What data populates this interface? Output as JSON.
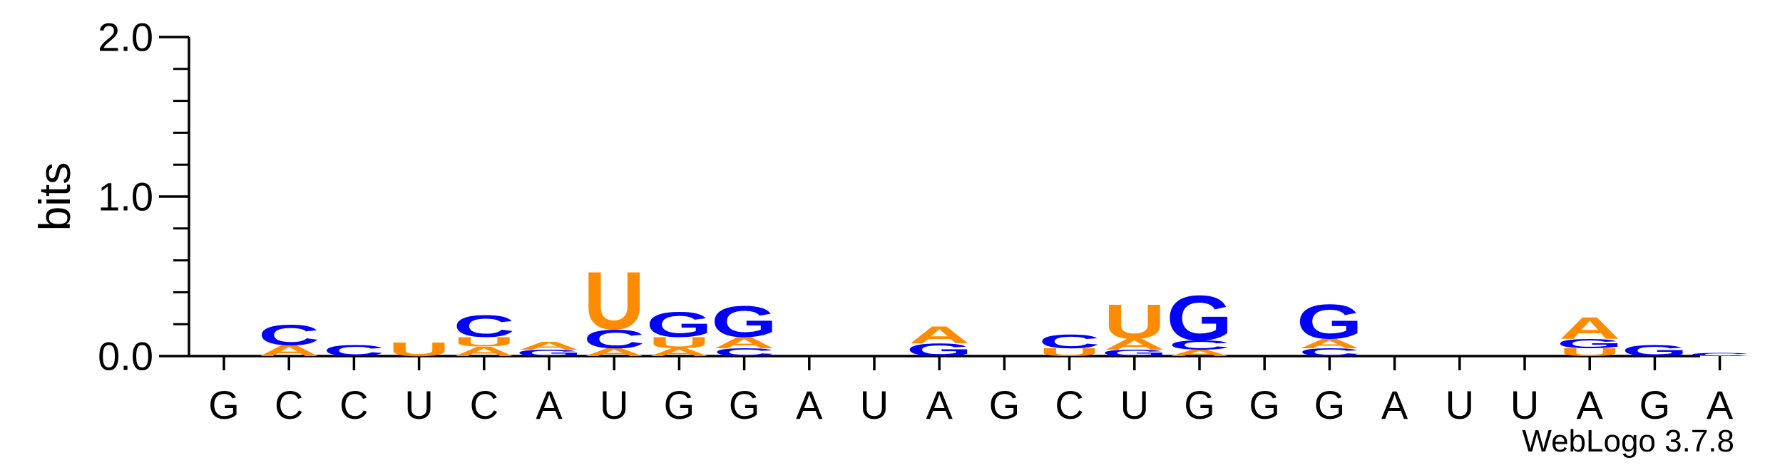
{
  "chart_data": {
    "type": "sequence-logo",
    "ylabel": "bits",
    "ylim": [
      0,
      2.0
    ],
    "yticks": [
      "0.0",
      "1.0",
      "2.0"
    ],
    "x": [
      "G",
      "C",
      "C",
      "U",
      "C",
      "A",
      "U",
      "G",
      "G",
      "A",
      "U",
      "A",
      "G",
      "C",
      "U",
      "G",
      "G",
      "G",
      "A",
      "U",
      "U",
      "A",
      "G",
      "A"
    ],
    "colors": {
      "A": "#ff8c00",
      "C": "#0000ff",
      "G": "#0000ff",
      "U": "#ff8c00"
    },
    "positions": [
      {
        "label": "G",
        "stack": []
      },
      {
        "label": "C",
        "stack": [
          {
            "letter": "A",
            "bits": 0.07
          },
          {
            "letter": "C",
            "bits": 0.13
          }
        ]
      },
      {
        "label": "C",
        "stack": [
          {
            "letter": "C",
            "bits": 0.07
          }
        ]
      },
      {
        "label": "U",
        "stack": [
          {
            "letter": "U",
            "bits": 0.09
          }
        ]
      },
      {
        "label": "C",
        "stack": [
          {
            "letter": "A",
            "bits": 0.06
          },
          {
            "letter": "U",
            "bits": 0.06
          },
          {
            "letter": "C",
            "bits": 0.14
          }
        ]
      },
      {
        "label": "A",
        "stack": [
          {
            "letter": "G",
            "bits": 0.04
          },
          {
            "letter": "A",
            "bits": 0.05
          }
        ]
      },
      {
        "label": "U",
        "stack": [
          {
            "letter": "A",
            "bits": 0.05
          },
          {
            "letter": "C",
            "bits": 0.12
          },
          {
            "letter": "U",
            "bits": 0.37
          }
        ]
      },
      {
        "label": "G",
        "stack": [
          {
            "letter": "A",
            "bits": 0.05
          },
          {
            "letter": "U",
            "bits": 0.07
          },
          {
            "letter": "G",
            "bits": 0.16
          }
        ]
      },
      {
        "label": "G",
        "stack": [
          {
            "letter": "C",
            "bits": 0.05
          },
          {
            "letter": "A",
            "bits": 0.07
          },
          {
            "letter": "G",
            "bits": 0.2
          }
        ]
      },
      {
        "label": "A",
        "stack": []
      },
      {
        "label": "U",
        "stack": []
      },
      {
        "label": "A",
        "stack": [
          {
            "letter": "G",
            "bits": 0.08
          },
          {
            "letter": "A",
            "bits": 0.11
          }
        ]
      },
      {
        "label": "G",
        "stack": []
      },
      {
        "label": "C",
        "stack": [
          {
            "letter": "U",
            "bits": 0.05
          },
          {
            "letter": "C",
            "bits": 0.09
          }
        ]
      },
      {
        "label": "U",
        "stack": [
          {
            "letter": "G",
            "bits": 0.04
          },
          {
            "letter": "A",
            "bits": 0.07
          },
          {
            "letter": "U",
            "bits": 0.22
          }
        ]
      },
      {
        "label": "G",
        "stack": [
          {
            "letter": "A",
            "bits": 0.04
          },
          {
            "letter": "C",
            "bits": 0.06
          },
          {
            "letter": "G",
            "bits": 0.29
          }
        ]
      },
      {
        "label": "G",
        "stack": []
      },
      {
        "label": "G",
        "stack": [
          {
            "letter": "C",
            "bits": 0.05
          },
          {
            "letter": "A",
            "bits": 0.06
          },
          {
            "letter": "G",
            "bits": 0.22
          }
        ]
      },
      {
        "label": "A",
        "stack": []
      },
      {
        "label": "U",
        "stack": []
      },
      {
        "label": "U",
        "stack": []
      },
      {
        "label": "A",
        "stack": [
          {
            "letter": "U",
            "bits": 0.05
          },
          {
            "letter": "G",
            "bits": 0.06
          },
          {
            "letter": "A",
            "bits": 0.14
          }
        ]
      },
      {
        "label": "G",
        "stack": [
          {
            "letter": "G",
            "bits": 0.07
          }
        ]
      },
      {
        "label": "A",
        "stack": [
          {
            "letter": "C",
            "bits": 0.02
          }
        ]
      }
    ]
  },
  "footer": {
    "version": "WebLogo 3.7.8"
  }
}
